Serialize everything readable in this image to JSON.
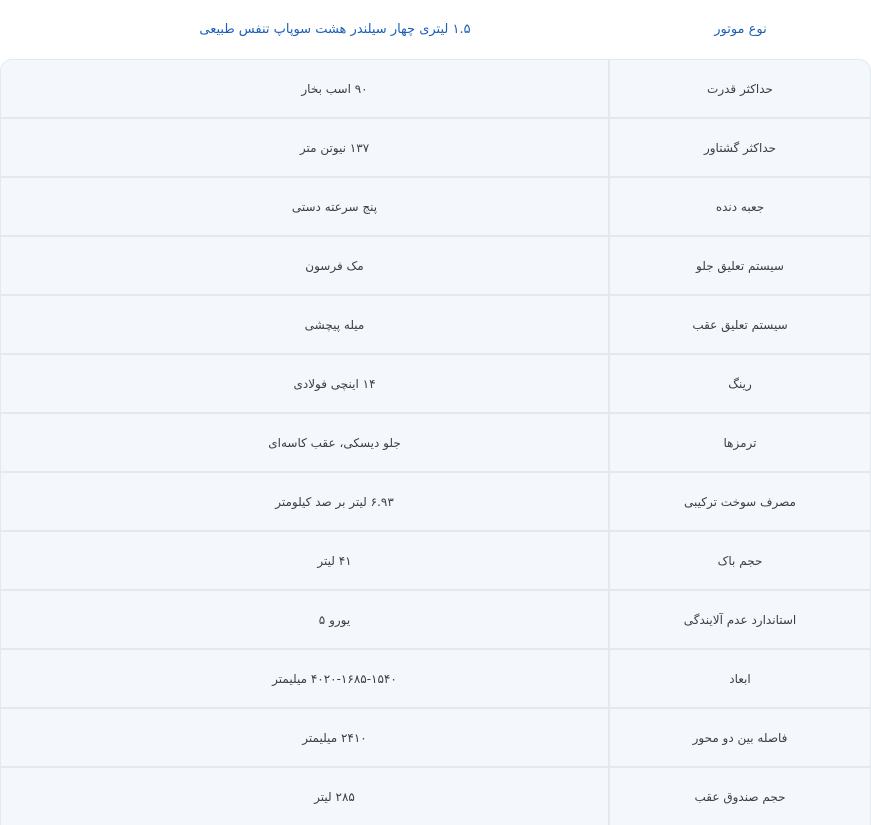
{
  "header": {
    "label": "نوع موتور",
    "value": "۱.۵ لیتری چهار سیلندر هشت سوپاپ تنفس طبیعی"
  },
  "colors": {
    "accent": "#1d5fb8",
    "row_bg": "#f4f8fc",
    "border": "#e3e9f1"
  },
  "rows": [
    {
      "label": "حداکثر قدرت",
      "value": "۹۰ اسب بخار"
    },
    {
      "label": "حداکثر گشتاور",
      "value": "۱۳۷ نیوتن متر"
    },
    {
      "label": "جعبه دنده",
      "value": "پنج سرعته دستی"
    },
    {
      "label": "سیستم تعلیق جلو",
      "value": "مک فرسون"
    },
    {
      "label": "سیستم تعلیق عقب",
      "value": "میله پیچشی"
    },
    {
      "label": "رینگ",
      "value": "۱۴ اینچی فولادی"
    },
    {
      "label": "ترمزها",
      "value": "جلو دیسکی، عقب کاسه‌ای"
    },
    {
      "label": "مصرف سوخت ترکیبی",
      "value": "۶.۹۳ لیتر بر صد کیلومتر"
    },
    {
      "label": "حجم باک",
      "value": "۴۱ لیتر"
    },
    {
      "label": "استاندارد عدم آلایندگی",
      "value": "یورو ۵"
    },
    {
      "label": "ابعاد",
      "value": "۴۰۲۰-۱۶۸۵-۱۵۴۰ میلیمتر"
    },
    {
      "label": "فاصله بین دو محور",
      "value": "۲۴۱۰ میلیمتر"
    },
    {
      "label": "حجم صندوق عقب",
      "value": "۲۸۵ لیتر"
    }
  ]
}
